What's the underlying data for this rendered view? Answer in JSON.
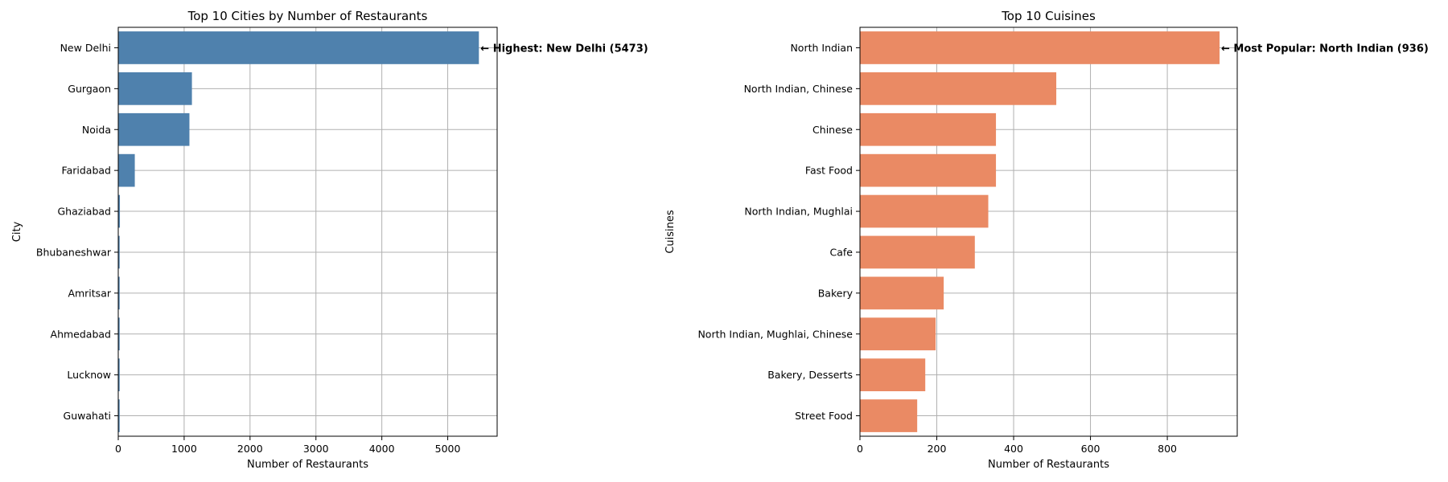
{
  "chart_data": [
    {
      "type": "bar",
      "orientation": "horizontal",
      "title": "Top 10 Cities by Number of Restaurants",
      "xlabel": "Number of Restaurants",
      "ylabel": "City",
      "xlim": [
        0,
        5750
      ],
      "xticks": [
        0,
        1000,
        2000,
        3000,
        4000,
        5000
      ],
      "grid": true,
      "color": "#4f81ad",
      "categories": [
        "New Delhi",
        "Gurgaon",
        "Noida",
        "Faridabad",
        "Ghaziabad",
        "Bhubaneshwar",
        "Amritsar",
        "Ahmedabad",
        "Lucknow",
        "Guwahati"
      ],
      "values": [
        5473,
        1118,
        1080,
        251,
        25,
        21,
        21,
        21,
        21,
        21
      ],
      "annotation": "← Highest: New Delhi (5473)"
    },
    {
      "type": "bar",
      "orientation": "horizontal",
      "title": "Top 10 Cuisines",
      "xlabel": "Number of Restaurants",
      "ylabel": "Cuisines",
      "xlim": [
        0,
        982
      ],
      "xticks": [
        0,
        200,
        400,
        600,
        800
      ],
      "grid": true,
      "color": "#ea8a64",
      "categories": [
        "North Indian",
        "North Indian, Chinese",
        "Chinese",
        "Fast Food",
        "North Indian, Mughlai",
        "Cafe",
        "Bakery",
        "North Indian, Mughlai, Chinese",
        "Bakery, Desserts",
        "Street Food"
      ],
      "values": [
        936,
        511,
        354,
        354,
        334,
        299,
        218,
        197,
        170,
        149
      ],
      "annotation": "← Most Popular: North Indian (936)"
    }
  ]
}
